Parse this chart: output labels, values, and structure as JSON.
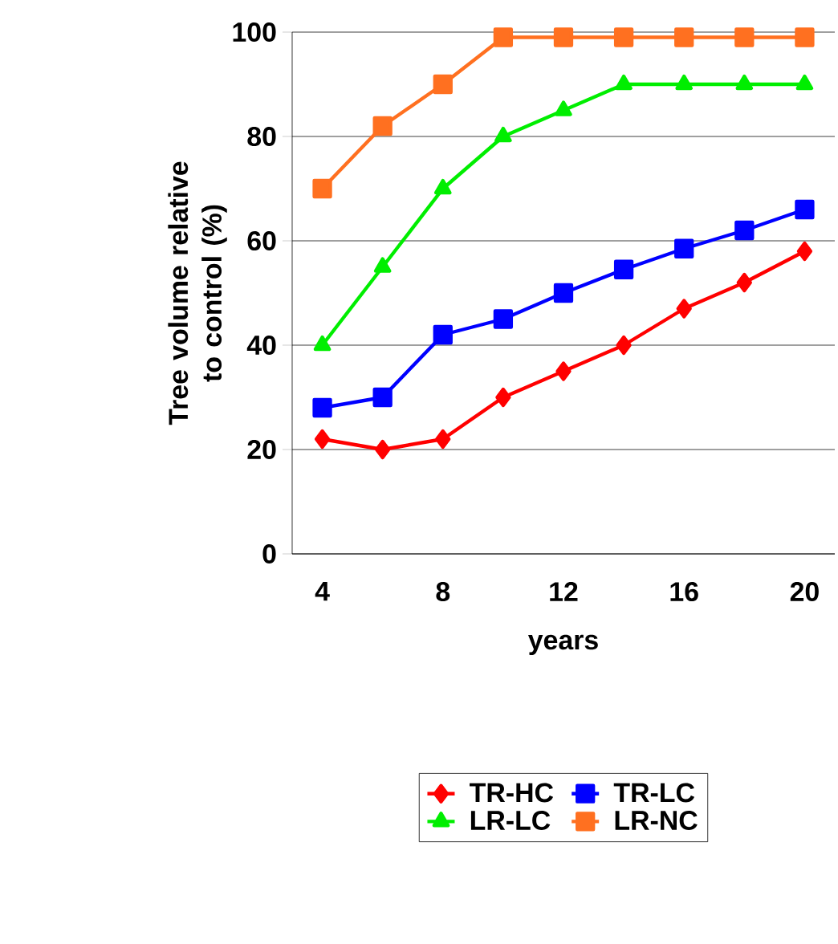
{
  "chart_data": {
    "type": "line",
    "ylabel": "Tree volume relative to control (%)",
    "xlabel": "years",
    "categories": [
      "4",
      null,
      "8",
      null,
      "12",
      null,
      "16",
      null,
      "20"
    ],
    "ylim": [
      0,
      100
    ],
    "yticks": [
      0,
      20,
      40,
      60,
      80,
      100
    ],
    "grid": "y",
    "legend": "bottom",
    "series": [
      {
        "name": "TR-HC",
        "color": "#ff0000",
        "marker": "diamond",
        "values": [
          22,
          20,
          22,
          30,
          35,
          40,
          47,
          52,
          58
        ]
      },
      {
        "name": "TR-LC",
        "color": "#0000ff",
        "marker": "square",
        "values": [
          28,
          30,
          42,
          45,
          50,
          54.5,
          58.5,
          62,
          66
        ]
      },
      {
        "name": "LR-LC",
        "color": "#00ee00",
        "marker": "triangle",
        "values": [
          40,
          55,
          70,
          80,
          85,
          90,
          90,
          90,
          90
        ]
      },
      {
        "name": "LR-NC",
        "color": "#ff7020",
        "marker": "square",
        "values": [
          70,
          82,
          90,
          99,
          99,
          99,
          99,
          99,
          99
        ]
      }
    ]
  }
}
